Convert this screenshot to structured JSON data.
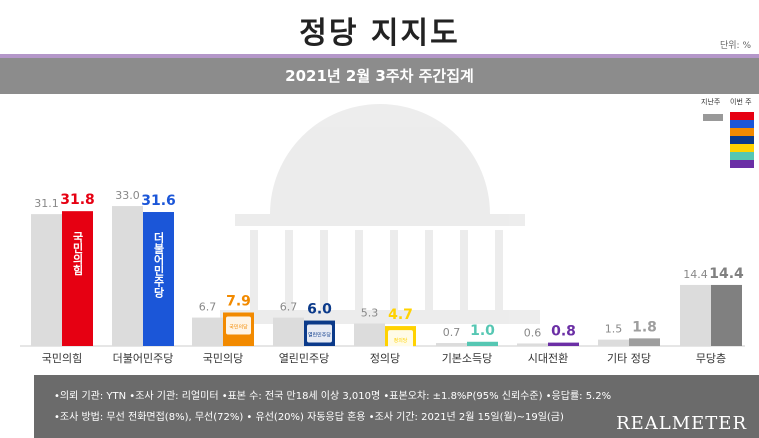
{
  "title": "정당 지지도",
  "unit": "단위: %",
  "subtitle": "2021년 2월 3주차 주간집계",
  "legend": {
    "last_week": "지난주",
    "this_week": "이번 주"
  },
  "colors": {
    "prev_bar": "#dcdcdc",
    "legend_swatches": [
      "#e60012",
      "#1b56d8",
      "#f28a00",
      "#0b3a8a",
      "#ffd200",
      "#56c7b3",
      "#6b2fa5"
    ]
  },
  "chart_data": {
    "type": "bar",
    "categories": [
      "국민의힘",
      "더불어민주당",
      "국민의당",
      "열린민주당",
      "정의당",
      "기본소득당",
      "시대전환",
      "기타 정당",
      "무당층"
    ],
    "series": [
      {
        "name": "지난주",
        "values": [
          31.1,
          33.0,
          6.7,
          6.7,
          5.3,
          0.7,
          0.6,
          1.5,
          14.4
        ]
      },
      {
        "name": "이번 주",
        "values": [
          31.8,
          31.6,
          7.9,
          6.0,
          4.7,
          1.0,
          0.8,
          1.8,
          14.4
        ]
      }
    ],
    "current_colors": [
      "#e60012",
      "#1b56d8",
      "#f28a00",
      "#0b3a8a",
      "#ffd200",
      "#56c7b3",
      "#6b2fa5",
      "#9e9e9e",
      "#808080"
    ],
    "bar_labels": [
      "국민의힘",
      "더불어민주당",
      "국민의당",
      "열린민주당",
      "정의당"
    ]
  },
  "footer": {
    "line1": "•의뢰 기관: YTN •조사 기관: 리얼미터 •표본 수: 전국 만18세 이상 3,010명 •표본오차: ±1.8%P(95% 신뢰수준) •응답률: 5.2%",
    "line2": "•조사 방법: 무선 전화면접(8%), 무선(72%) • 유선(20%) 자동응답 혼용 •조사 기간: 2021년 2월 15일(월)~19일(금)",
    "brand": "REALMETER"
  }
}
